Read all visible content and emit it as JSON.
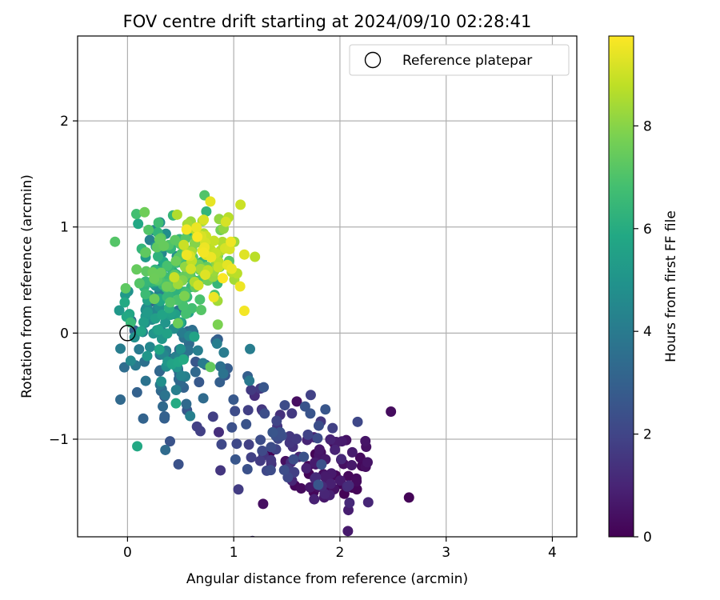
{
  "chart_data": {
    "type": "scatter",
    "title": "FOV centre drift starting at 2024/09/10 02:28:41",
    "xlabel": "Angular distance from reference (arcmin)",
    "ylabel": "Rotation from reference (arcmin)",
    "xlim": [
      -0.47,
      4.23
    ],
    "ylim": [
      -1.92,
      2.8
    ],
    "xticks": [
      0,
      1,
      2,
      3,
      4
    ],
    "yticks": [
      -1,
      0,
      1,
      2
    ],
    "xtick_labels": [
      "0",
      "1",
      "2",
      "3",
      "4"
    ],
    "ytick_labels": [
      "−1",
      "0",
      "1",
      "2"
    ],
    "grid": true,
    "legend_position": "top-right",
    "legend_label": "Reference platepar",
    "colormap": "viridis",
    "colorbar": {
      "label": "Hours from first FF file",
      "range": [
        0,
        9.75
      ],
      "ticks": [
        0,
        2,
        4,
        6,
        8
      ],
      "tick_labels": [
        "0",
        "2",
        "4",
        "6",
        "8"
      ]
    },
    "reference_point": {
      "x": 0,
      "y": 0
    },
    "clusters": [
      {
        "t": [
          0,
          1.2
        ],
        "cx": 1.95,
        "cy": -1.3,
        "sx": 0.22,
        "sy": 0.22,
        "n": 75
      },
      {
        "t": [
          1.2,
          2.6
        ],
        "cx": 1.3,
        "cy": -0.95,
        "sx": 0.35,
        "sy": 0.25,
        "n": 70
      },
      {
        "t": [
          2.6,
          4.2
        ],
        "cx": 0.55,
        "cy": -0.4,
        "sx": 0.25,
        "sy": 0.25,
        "n": 70
      },
      {
        "t": [
          4.2,
          6.0
        ],
        "cx": 0.3,
        "cy": 0.2,
        "sx": 0.15,
        "sy": 0.35,
        "n": 90
      },
      {
        "t": [
          6.0,
          7.6
        ],
        "cx": 0.45,
        "cy": 0.6,
        "sx": 0.2,
        "sy": 0.25,
        "n": 110
      },
      {
        "t": [
          7.6,
          9.75
        ],
        "cx": 0.75,
        "cy": 0.75,
        "sx": 0.15,
        "sy": 0.22,
        "n": 85
      }
    ],
    "extra_points": [
      {
        "x": 2.48,
        "y": -0.74,
        "t": 0.3
      },
      {
        "x": 2.65,
        "y": -1.55,
        "t": 0.1
      },
      {
        "x": 0.4,
        "y": -1.02,
        "t": 2.5
      },
      {
        "x": 0.78,
        "y": -0.32,
        "t": 7.4
      },
      {
        "x": 1.1,
        "y": 0.21,
        "t": 9.6
      },
      {
        "x": 1.06,
        "y": 0.44,
        "t": 9.5
      },
      {
        "x": 0.1,
        "y": 1.03,
        "t": 5.8
      },
      {
        "x": 0.78,
        "y": 1.24,
        "t": 9.4
      },
      {
        "x": 0.95,
        "y": 1.09,
        "t": 8.7
      },
      {
        "x": 0.16,
        "y": -0.27,
        "t": 3.6
      },
      {
        "x": 0.03,
        "y": 0.1,
        "t": 6.5
      },
      {
        "x": 0.85,
        "y": 0.08,
        "t": 7.8
      },
      {
        "x": 1.1,
        "y": 0.74,
        "t": 9.3
      }
    ]
  }
}
